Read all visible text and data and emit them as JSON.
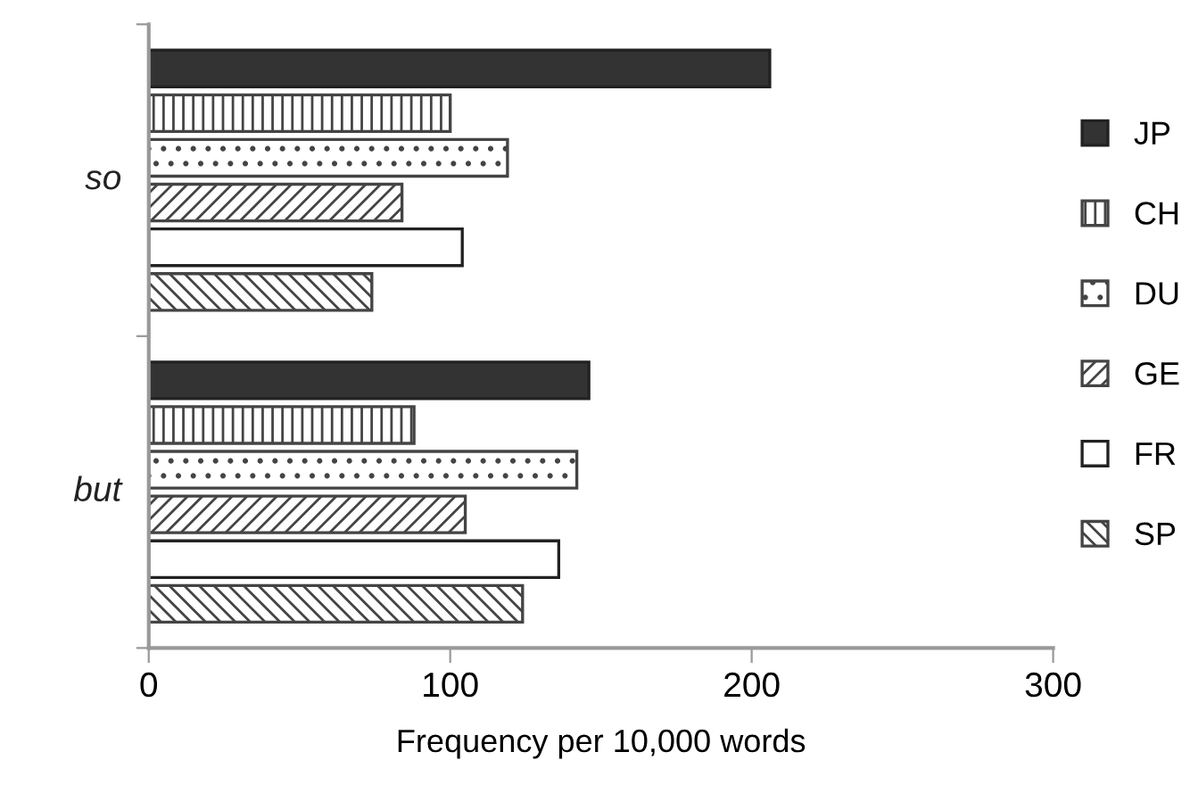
{
  "chart_data": {
    "type": "bar",
    "orientation": "horizontal",
    "xlabel": "Frequency per 10,000 words",
    "categories": [
      "so",
      "but"
    ],
    "series": [
      {
        "name": "JP",
        "color": "#333333",
        "values": [
          206,
          146
        ]
      },
      {
        "name": "CH",
        "color": "#444444",
        "values": [
          100,
          88
        ]
      },
      {
        "name": "DU",
        "color": "#444444",
        "values": [
          119,
          142
        ]
      },
      {
        "name": "GE",
        "color": "#444444",
        "values": [
          84,
          105
        ]
      },
      {
        "name": "FR",
        "color": "#ffffff",
        "values": [
          104,
          136
        ]
      },
      {
        "name": "SP",
        "color": "#444444",
        "values": [
          74,
          124
        ]
      }
    ],
    "xlim": [
      0,
      300
    ],
    "xticks": [
      0,
      100,
      200,
      300
    ],
    "grid": false,
    "legend": "right"
  }
}
